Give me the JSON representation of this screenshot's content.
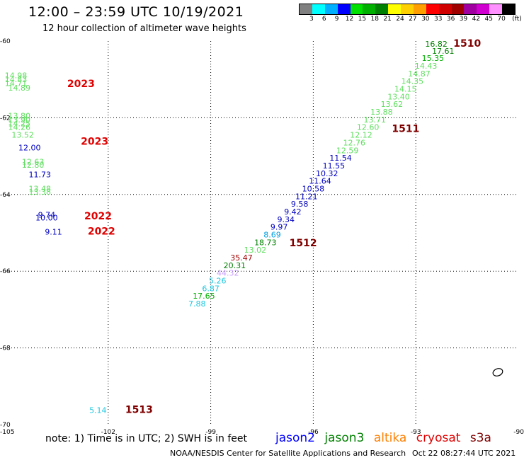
{
  "header": {
    "title": "12:00 – 23:59 UTC 10/19/2021",
    "subtitle": "12 hour collection of altimeter wave heights"
  },
  "colorbar": {
    "colors": [
      "#808080",
      "#00ffff",
      "#00b0ff",
      "#0000ff",
      "#00e000",
      "#00b000",
      "#008000",
      "#ffff00",
      "#ffd000",
      "#ffa000",
      "#ff0000",
      "#d00000",
      "#a00000",
      "#a000a0",
      "#d000d0",
      "#ff90ff",
      "#000000"
    ],
    "labels": [
      "3",
      "6",
      "9",
      "12",
      "15",
      "18",
      "21",
      "24",
      "27",
      "30",
      "33",
      "36",
      "39",
      "42",
      "45",
      "70",
      "(ft)"
    ]
  },
  "map": {
    "x_ticks": [
      "-105",
      "-102",
      "-99",
      "-96",
      "-93",
      "-90"
    ],
    "y_ticks": [
      "-60",
      "-62",
      "-64",
      "-66",
      "-68",
      "-70"
    ]
  },
  "chart_data": {
    "type": "map",
    "xlim": [
      -105,
      -90
    ],
    "ylim": [
      -70,
      -60
    ],
    "grid": "dotted",
    "swh_points": [
      {
        "lon": -92.4,
        "lat": -60.15,
        "value": "16.82",
        "color": "#008000"
      },
      {
        "lon": -92.2,
        "lat": -60.33,
        "value": "17.61",
        "color": "#008000"
      },
      {
        "lon": -92.5,
        "lat": -60.52,
        "value": "15.35",
        "color": "#00b000"
      },
      {
        "lon": -92.7,
        "lat": -60.72,
        "value": "14.43",
        "color": "#5fdf5f"
      },
      {
        "lon": -92.9,
        "lat": -60.92,
        "value": "14.87",
        "color": "#5fdf5f"
      },
      {
        "lon": -93.1,
        "lat": -61.12,
        "value": "14.35",
        "color": "#5fdf5f"
      },
      {
        "lon": -93.3,
        "lat": -61.32,
        "value": "14.15",
        "color": "#5fdf5f"
      },
      {
        "lon": -93.5,
        "lat": -61.52,
        "value": "13.40",
        "color": "#5fdf5f"
      },
      {
        "lon": -93.7,
        "lat": -61.72,
        "value": "13.62",
        "color": "#5fdf5f"
      },
      {
        "lon": -94.0,
        "lat": -61.92,
        "value": "13.88",
        "color": "#5fdf5f"
      },
      {
        "lon": -94.2,
        "lat": -62.12,
        "value": "13.71",
        "color": "#5fdf5f"
      },
      {
        "lon": -94.4,
        "lat": -62.32,
        "value": "12.60",
        "color": "#5fdf5f"
      },
      {
        "lon": -94.6,
        "lat": -62.52,
        "value": "12.12",
        "color": "#5fdf5f"
      },
      {
        "lon": -94.8,
        "lat": -62.72,
        "value": "12.76",
        "color": "#5fdf5f"
      },
      {
        "lon": -95.0,
        "lat": -62.92,
        "value": "12.59",
        "color": "#5fdf5f"
      },
      {
        "lon": -95.2,
        "lat": -63.12,
        "value": "11.54",
        "color": "#0000c0"
      },
      {
        "lon": -95.4,
        "lat": -63.32,
        "value": "11.55",
        "color": "#0000c0"
      },
      {
        "lon": -95.6,
        "lat": -63.52,
        "value": "10.32",
        "color": "#0000c0"
      },
      {
        "lon": -95.8,
        "lat": -63.72,
        "value": "11.64",
        "color": "#0000c0"
      },
      {
        "lon": -96.0,
        "lat": -63.92,
        "value": "10.58",
        "color": "#0000c0"
      },
      {
        "lon": -96.2,
        "lat": -64.12,
        "value": "11.21",
        "color": "#0000c0"
      },
      {
        "lon": -96.4,
        "lat": -64.32,
        "value": "9.58",
        "color": "#0000c0"
      },
      {
        "lon": -96.6,
        "lat": -64.52,
        "value": "9.42",
        "color": "#0000c0"
      },
      {
        "lon": -96.8,
        "lat": -64.72,
        "value": "9.34",
        "color": "#0000c0"
      },
      {
        "lon": -97.0,
        "lat": -64.92,
        "value": "9.97",
        "color": "#0000c0"
      },
      {
        "lon": -97.2,
        "lat": -65.12,
        "value": "8.69",
        "color": "#00a0e0"
      },
      {
        "lon": -97.4,
        "lat": -65.32,
        "value": "18.73",
        "color": "#008000"
      },
      {
        "lon": -97.7,
        "lat": -65.52,
        "value": "13.02",
        "color": "#5fdf5f"
      },
      {
        "lon": -98.1,
        "lat": -65.72,
        "value": "35.47",
        "color": "#a00000"
      },
      {
        "lon": -98.3,
        "lat": -65.92,
        "value": "20.31",
        "color": "#008000"
      },
      {
        "lon": -98.5,
        "lat": -66.12,
        "value": "44.32",
        "color": "#c8a0ff"
      },
      {
        "lon": -98.8,
        "lat": -66.32,
        "value": "5.26",
        "color": "#20c8e0"
      },
      {
        "lon": -99.0,
        "lat": -66.52,
        "value": "6.87",
        "color": "#20c8e0"
      },
      {
        "lon": -99.2,
        "lat": -66.72,
        "value": "17.65",
        "color": "#00b000"
      },
      {
        "lon": -99.4,
        "lat": -66.92,
        "value": "7.88",
        "color": "#20c8e0"
      },
      {
        "lon": -104.7,
        "lat": -60.97,
        "value": "14.98",
        "color": "#5fdf5f"
      },
      {
        "lon": -104.7,
        "lat": -61.07,
        "value": "14.83",
        "color": "#5fdf5f"
      },
      {
        "lon": -104.7,
        "lat": -61.17,
        "value": "14.71",
        "color": "#5fdf5f"
      },
      {
        "lon": -104.6,
        "lat": -61.29,
        "value": "14.89",
        "color": "#5fdf5f"
      },
      {
        "lon": -104.6,
        "lat": -62.02,
        "value": "13.80",
        "color": "#5fdf5f"
      },
      {
        "lon": -104.6,
        "lat": -62.12,
        "value": "13.90",
        "color": "#5fdf5f"
      },
      {
        "lon": -104.6,
        "lat": -62.22,
        "value": "14.25",
        "color": "#5fdf5f"
      },
      {
        "lon": -104.6,
        "lat": -62.32,
        "value": "14.26",
        "color": "#5fdf5f"
      },
      {
        "lon": -104.5,
        "lat": -62.52,
        "value": "13.52",
        "color": "#5fdf5f"
      },
      {
        "lon": -104.3,
        "lat": -62.85,
        "value": "12.00",
        "color": "#0000c0"
      },
      {
        "lon": -104.2,
        "lat": -63.22,
        "value": "12.63",
        "color": "#5fdf5f"
      },
      {
        "lon": -104.2,
        "lat": -63.3,
        "value": "12.80",
        "color": "#5fdf5f"
      },
      {
        "lon": -104.0,
        "lat": -63.55,
        "value": "11.73",
        "color": "#0000c0"
      },
      {
        "lon": -104.0,
        "lat": -63.92,
        "value": "13.48",
        "color": "#5fdf5f"
      },
      {
        "lon": -104.0,
        "lat": -64.0,
        "value": "13.38",
        "color": "#5fdf5f"
      },
      {
        "lon": -103.8,
        "lat": -64.6,
        "value": "9.74",
        "color": "#0000c0"
      },
      {
        "lon": -103.8,
        "lat": -64.68,
        "value": "10.00",
        "color": "#0000c0"
      },
      {
        "lon": -103.6,
        "lat": -65.05,
        "value": "9.11",
        "color": "#0000c0"
      },
      {
        "lon": -102.3,
        "lat": -69.7,
        "value": "5.14",
        "color": "#20c8e0"
      }
    ],
    "time_labels": [
      {
        "lon": -91.9,
        "lat": -60.15,
        "value": "1510",
        "color": "#800000"
      },
      {
        "lon": -93.7,
        "lat": -62.37,
        "value": "1511",
        "color": "#800000"
      },
      {
        "lon": -96.7,
        "lat": -65.35,
        "value": "1512",
        "color": "#800000"
      },
      {
        "lon": -101.5,
        "lat": -69.7,
        "value": "1513",
        "color": "#800000"
      },
      {
        "lon": -103.2,
        "lat": -61.2,
        "value": "2023",
        "color": "#e00000"
      },
      {
        "lon": -102.8,
        "lat": -62.7,
        "value": "2023",
        "color": "#e00000"
      },
      {
        "lon": -102.7,
        "lat": -64.65,
        "value": "2022",
        "color": "#e00000"
      },
      {
        "lon": -102.6,
        "lat": -65.05,
        "value": "2022",
        "color": "#e00000"
      }
    ]
  },
  "footer": {
    "note": "note: 1) Time is in UTC; 2) SWH is in feet",
    "satellites": [
      {
        "name": "jason2",
        "color": "#0000ff"
      },
      {
        "name": "jason3",
        "color": "#008000"
      },
      {
        "name": "altika",
        "color": "#ff8000"
      },
      {
        "name": "cryosat",
        "color": "#e00000"
      },
      {
        "name": "s3a",
        "color": "#800000"
      }
    ],
    "credit": "NOAA/NESDIS Center for Satellite Applications and Research",
    "timestamp": "Oct 22 08:27:44 UTC 2021"
  }
}
